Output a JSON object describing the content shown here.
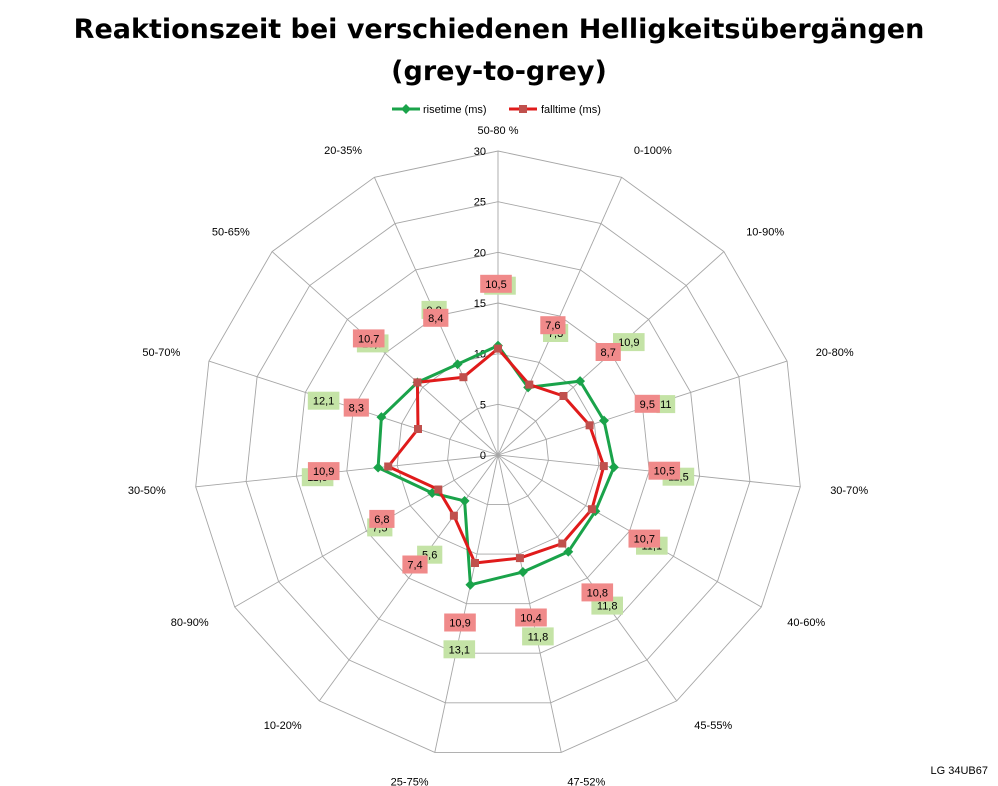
{
  "chart_data": {
    "type": "radar",
    "title_line1": "Reaktionszeit bei verschiedenen Helligkeitsübergängen",
    "title_line2": "(grey-to-grey)",
    "categories": [
      "50-80 %",
      "0-100%",
      "10-90%",
      "20-80%",
      "30-70%",
      "40-60%",
      "45-55%",
      "47-52%",
      "25-75%",
      "10-20%",
      "80-90%",
      "30-50%",
      "50-70%",
      "50-65%",
      "20-35%"
    ],
    "rlim": [
      0,
      30
    ],
    "ticks": [
      "0",
      "5",
      "10",
      "15",
      "20",
      "25",
      "30"
    ],
    "tick_values": [
      0,
      5,
      10,
      15,
      20,
      25,
      30
    ],
    "grid": true,
    "legend_position": "top",
    "series": [
      {
        "name": "risetime (ms)",
        "color": "#1aa34a",
        "label_bg": "#c4e3a6",
        "values": [
          10.8,
          7.3,
          10.9,
          11,
          11.5,
          11.1,
          11.8,
          11.8,
          13.1,
          5.6,
          7.5,
          11.9,
          12.1,
          10.7,
          9.8
        ],
        "labels": [
          "10,8",
          "7,3",
          "10,9",
          "11",
          "11,5",
          "11,1",
          "11,8",
          "11,8",
          "13,1",
          "5,6",
          "7,5",
          "11,9",
          "12,1",
          "10,7",
          "9,8"
        ]
      },
      {
        "name": "falltime (ms)",
        "color": "#e01b1b",
        "label_bg": "#f08a8a",
        "values": [
          10.5,
          7.6,
          8.7,
          9.5,
          10.5,
          10.7,
          10.8,
          10.4,
          10.9,
          7.4,
          6.8,
          10.9,
          8.3,
          10.7,
          8.4
        ],
        "labels": [
          "10,5",
          "7,6",
          "8,7",
          "9,5",
          "10,5",
          "10,7",
          "10,8",
          "10,4",
          "10,9",
          "7,4",
          "6,8",
          "10,9",
          "8,3",
          "10,7",
          "8,4"
        ]
      }
    ]
  },
  "footer": "LG 34UB67"
}
